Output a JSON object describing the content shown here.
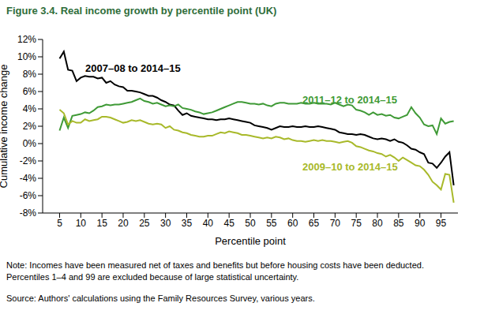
{
  "chart_data": {
    "type": "line",
    "title": "Figure 3.4. Real income growth by percentile point (UK)",
    "x_label": "Percentile point",
    "y_label": "Cumulative income change",
    "notes": [
      "Note: Incomes have been measured net of taxes and benefits but before housing costs have been deducted.",
      "Percentiles 1–4 and 99 are excluded because of large statistical uncertainty."
    ],
    "source": "Source: Authors' calculations using the Family Resources Survey, various years.",
    "grid": false,
    "x": [
      5,
      6,
      7,
      8,
      9,
      10,
      11,
      12,
      13,
      14,
      15,
      16,
      17,
      18,
      19,
      20,
      21,
      22,
      23,
      24,
      25,
      26,
      27,
      28,
      29,
      30,
      31,
      32,
      33,
      34,
      35,
      36,
      37,
      38,
      39,
      40,
      41,
      42,
      43,
      44,
      45,
      46,
      47,
      48,
      49,
      50,
      51,
      52,
      53,
      54,
      55,
      56,
      57,
      58,
      59,
      60,
      61,
      62,
      63,
      64,
      65,
      66,
      67,
      68,
      69,
      70,
      71,
      72,
      73,
      74,
      75,
      76,
      77,
      78,
      79,
      80,
      81,
      82,
      83,
      84,
      85,
      86,
      87,
      88,
      89,
      90,
      91,
      92,
      93,
      94,
      95,
      96,
      97,
      98
    ],
    "xlim": [
      1,
      99
    ],
    "xticks": [
      5,
      10,
      15,
      20,
      25,
      30,
      35,
      40,
      45,
      50,
      55,
      60,
      65,
      70,
      75,
      80,
      85,
      90,
      95
    ],
    "ylim": [
      -8,
      12
    ],
    "yticks": [
      {
        "value": -8,
        "label": "-8%"
      },
      {
        "value": -6,
        "label": "-6%"
      },
      {
        "value": -4,
        "label": "-4%"
      },
      {
        "value": -2,
        "label": "-2%"
      },
      {
        "value": 0,
        "label": "0%"
      },
      {
        "value": 2,
        "label": "2%"
      },
      {
        "value": 4,
        "label": "4%"
      },
      {
        "value": 6,
        "label": "6%"
      },
      {
        "value": 8,
        "label": "8%"
      },
      {
        "value": 10,
        "label": "10%"
      },
      {
        "value": 12,
        "label": "12%"
      }
    ],
    "series": [
      {
        "name": "2007–08 to 2014–15",
        "color": "#000000",
        "values": [
          9.8,
          10.6,
          8.5,
          8.4,
          7.2,
          7.6,
          7.8,
          7.7,
          7.7,
          7.5,
          7.6,
          7.0,
          7.2,
          6.8,
          6.6,
          6.5,
          6.1,
          6.1,
          6.0,
          5.9,
          5.7,
          5.5,
          5.5,
          5.3,
          5.0,
          4.8,
          4.5,
          4.4,
          3.8,
          3.3,
          3.5,
          3.2,
          3.1,
          3.0,
          2.9,
          2.8,
          2.8,
          2.7,
          2.8,
          2.8,
          2.9,
          2.8,
          2.7,
          2.6,
          2.5,
          2.4,
          2.1,
          2.0,
          1.9,
          1.8,
          1.6,
          1.8,
          2.0,
          1.9,
          1.9,
          2.0,
          1.9,
          1.9,
          2.0,
          1.9,
          1.9,
          2.0,
          1.9,
          1.8,
          1.7,
          1.6,
          1.3,
          1.2,
          1.1,
          1.1,
          1.0,
          1.1,
          1.0,
          0.8,
          0.6,
          0.5,
          0.6,
          0.5,
          0.3,
          0.5,
          0.2,
          0.1,
          -0.2,
          -0.6,
          -0.7,
          -1.0,
          -1.2,
          -2.2,
          -2.3,
          -2.8,
          -2.2,
          -1.5,
          -1.0,
          -4.8
        ]
      },
      {
        "name": "2011–12 to 2014–15",
        "color": "#3f9a36",
        "values": [
          1.5,
          3.0,
          1.8,
          3.2,
          3.3,
          3.4,
          3.6,
          3.5,
          3.8,
          4.2,
          4.3,
          4.5,
          4.4,
          4.5,
          4.5,
          4.6,
          4.7,
          4.8,
          5.0,
          5.2,
          4.9,
          4.8,
          4.6,
          4.7,
          4.5,
          4.3,
          4.4,
          4.3,
          4.5,
          4.1,
          4.0,
          3.9,
          3.7,
          3.6,
          3.4,
          3.5,
          3.6,
          3.8,
          4.0,
          4.2,
          4.4,
          4.6,
          4.8,
          4.8,
          4.7,
          4.6,
          4.6,
          4.5,
          4.6,
          4.4,
          4.3,
          4.6,
          4.7,
          4.7,
          4.6,
          4.6,
          4.6,
          4.7,
          4.6,
          4.6,
          4.7,
          4.6,
          4.6,
          4.6,
          4.5,
          4.7,
          4.5,
          4.3,
          4.5,
          4.4,
          3.9,
          3.8,
          3.6,
          3.3,
          3.6,
          3.3,
          3.4,
          3.2,
          3.3,
          3.0,
          2.9,
          3.1,
          3.3,
          4.2,
          3.5,
          3.0,
          2.2,
          2.0,
          2.1,
          1.1,
          2.9,
          2.3,
          2.5,
          2.6
        ]
      },
      {
        "name": "2009–10 to 2014–15",
        "color": "#a8b92a",
        "values": [
          3.9,
          3.5,
          2.2,
          2.6,
          2.4,
          2.4,
          2.8,
          2.6,
          2.7,
          2.8,
          3.1,
          3.1,
          3.0,
          2.8,
          2.6,
          2.4,
          2.5,
          2.7,
          2.6,
          2.7,
          2.5,
          2.3,
          2.2,
          2.3,
          2.2,
          1.8,
          2.0,
          1.6,
          1.5,
          1.3,
          1.2,
          1.0,
          0.9,
          0.8,
          0.8,
          0.9,
          0.9,
          1.1,
          1.3,
          1.2,
          1.4,
          1.3,
          1.2,
          1.0,
          1.0,
          0.9,
          0.8,
          0.7,
          0.6,
          0.7,
          0.6,
          0.8,
          0.7,
          0.5,
          0.6,
          0.4,
          0.3,
          0.3,
          0.2,
          0.3,
          0.4,
          0.3,
          0.4,
          0.3,
          0.3,
          0.2,
          0.1,
          0.2,
          0.3,
          0.1,
          -0.3,
          -0.4,
          -0.6,
          -0.8,
          -0.9,
          -1.1,
          -1.2,
          -1.5,
          -1.3,
          -1.6,
          -2.0,
          -1.6,
          -1.9,
          -2.2,
          -2.5,
          -2.6,
          -3.0,
          -3.6,
          -4.4,
          -4.8,
          -5.3,
          -3.5,
          -3.6,
          -6.8
        ]
      }
    ]
  }
}
